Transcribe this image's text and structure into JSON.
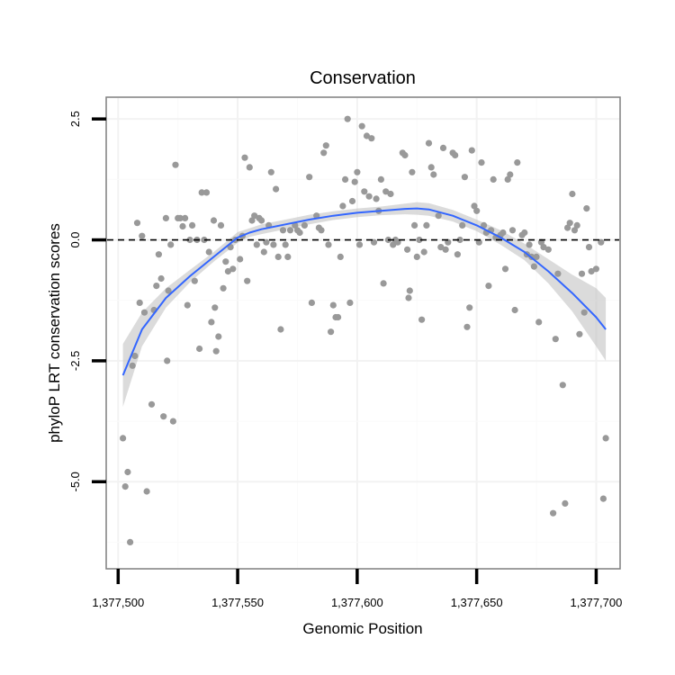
{
  "chart_data": {
    "type": "scatter",
    "title": "Conservation",
    "xlabel": "Genomic Position",
    "ylabel": "phyloP LRT conservation scores",
    "xlim": [
      1377495,
      1377710
    ],
    "ylim": [
      -6.8,
      2.95
    ],
    "x_ticks": [
      1377500,
      1377550,
      1377600,
      1377650,
      1377700
    ],
    "x_tick_labels": [
      "1,377,500",
      "1,377,550",
      "1,377,600",
      "1,377,650",
      "1,377,700"
    ],
    "y_ticks": [
      2.5,
      0,
      -2.5,
      -5
    ],
    "y_tick_labels": [
      "2.5",
      "0.0",
      "-2.5",
      "-5.0"
    ],
    "reference_line": {
      "y": 0,
      "style": "dashed",
      "color": "#000000"
    },
    "point_color": "#999999",
    "smooth_color": "#3366ff",
    "ribbon_color": "#bdbdbd",
    "points": [
      [
        1377502,
        -4.1
      ],
      [
        1377503,
        -5.1
      ],
      [
        1377504,
        -4.8
      ],
      [
        1377505,
        -6.25
      ],
      [
        1377506,
        -2.6
      ],
      [
        1377507,
        -2.4
      ],
      [
        1377508,
        0.35
      ],
      [
        1377509,
        -1.3
      ],
      [
        1377510,
        0.08
      ],
      [
        1377511,
        -1.5
      ],
      [
        1377512,
        -5.2
      ],
      [
        1377514,
        -3.4
      ],
      [
        1377515,
        -1.45
      ],
      [
        1377516,
        -0.95
      ],
      [
        1377517,
        -0.3
      ],
      [
        1377518,
        -0.8
      ],
      [
        1377519,
        -3.65
      ],
      [
        1377520,
        0.45
      ],
      [
        1377520.5,
        -2.5
      ],
      [
        1377521,
        -1.05
      ],
      [
        1377522,
        -0.1
      ],
      [
        1377523,
        -3.75
      ],
      [
        1377524,
        1.55
      ],
      [
        1377525,
        0.45
      ],
      [
        1377526,
        0.45
      ],
      [
        1377527,
        0.28
      ],
      [
        1377528,
        0.45
      ],
      [
        1377529,
        -1.35
      ],
      [
        1377530,
        0.0
      ],
      [
        1377531,
        0.3
      ],
      [
        1377532,
        -0.85
      ],
      [
        1377533,
        0.0
      ],
      [
        1377534,
        -2.25
      ],
      [
        1377535,
        0.98
      ],
      [
        1377536,
        0.0
      ],
      [
        1377537,
        0.98
      ],
      [
        1377538,
        -0.25
      ],
      [
        1377539,
        -1.7
      ],
      [
        1377540,
        0.4
      ],
      [
        1377540.5,
        -1.4
      ],
      [
        1377541,
        -2.3
      ],
      [
        1377542,
        -2.0
      ],
      [
        1377543,
        0.3
      ],
      [
        1377544,
        -1.0
      ],
      [
        1377545,
        -0.45
      ],
      [
        1377546,
        -0.65
      ],
      [
        1377547,
        -0.15
      ],
      [
        1377548,
        -0.6
      ],
      [
        1377549,
        0.0
      ],
      [
        1377551,
        -0.4
      ],
      [
        1377552,
        0.08
      ],
      [
        1377553,
        1.7
      ],
      [
        1377554,
        -0.85
      ],
      [
        1377555,
        1.5
      ],
      [
        1377556,
        0.4
      ],
      [
        1377557,
        0.5
      ],
      [
        1377558,
        -0.1
      ],
      [
        1377559,
        0.45
      ],
      [
        1377560,
        0.4
      ],
      [
        1377561,
        -0.25
      ],
      [
        1377562,
        -0.05
      ],
      [
        1377563,
        0.3
      ],
      [
        1377564,
        1.4
      ],
      [
        1377565,
        -0.1
      ],
      [
        1377566,
        1.05
      ],
      [
        1377567,
        -0.35
      ],
      [
        1377568,
        -1.85
      ],
      [
        1377569,
        0.2
      ],
      [
        1377570,
        -0.1
      ],
      [
        1377571,
        -0.35
      ],
      [
        1377572,
        0.2
      ],
      [
        1377574,
        0.3
      ],
      [
        1377575,
        0.2
      ],
      [
        1377576,
        0.15
      ],
      [
        1377578,
        0.3
      ],
      [
        1377580,
        1.3
      ],
      [
        1377581,
        -1.3
      ],
      [
        1377583,
        0.5
      ],
      [
        1377584,
        0.25
      ],
      [
        1377585,
        0.2
      ],
      [
        1377586,
        1.8
      ],
      [
        1377587,
        1.95
      ],
      [
        1377588,
        -0.1
      ],
      [
        1377589,
        -1.9
      ],
      [
        1377590,
        -1.35
      ],
      [
        1377591,
        -1.6
      ],
      [
        1377592,
        -1.6
      ],
      [
        1377593,
        -0.35
      ],
      [
        1377594,
        0.7
      ],
      [
        1377595,
        1.25
      ],
      [
        1377596,
        2.5
      ],
      [
        1377597,
        -1.3
      ],
      [
        1377598,
        0.8
      ],
      [
        1377599,
        1.2
      ],
      [
        1377600,
        1.4
      ],
      [
        1377601,
        -0.1
      ],
      [
        1377602,
        2.35
      ],
      [
        1377603,
        1.0
      ],
      [
        1377604,
        2.15
      ],
      [
        1377605,
        0.9
      ],
      [
        1377606,
        2.1
      ],
      [
        1377607,
        -0.05
      ],
      [
        1377608,
        0.85
      ],
      [
        1377609,
        0.6
      ],
      [
        1377610,
        1.25
      ],
      [
        1377611,
        -0.9
      ],
      [
        1377612,
        1.0
      ],
      [
        1377613,
        0.0
      ],
      [
        1377614,
        0.95
      ],
      [
        1377615,
        -0.1
      ],
      [
        1377616,
        0.0
      ],
      [
        1377617,
        -0.05
      ],
      [
        1377619,
        1.8
      ],
      [
        1377620,
        1.75
      ],
      [
        1377621,
        -0.2
      ],
      [
        1377621.5,
        -1.2
      ],
      [
        1377622,
        -1.05
      ],
      [
        1377623,
        1.4
      ],
      [
        1377624,
        0.3
      ],
      [
        1377625,
        -0.35
      ],
      [
        1377626,
        0.0
      ],
      [
        1377627,
        -1.65
      ],
      [
        1377628,
        -0.25
      ],
      [
        1377629,
        0.3
      ],
      [
        1377630,
        2.0
      ],
      [
        1377631,
        1.5
      ],
      [
        1377632,
        1.35
      ],
      [
        1377634,
        0.5
      ],
      [
        1377635,
        -0.15
      ],
      [
        1377636,
        1.9
      ],
      [
        1377637,
        -0.2
      ],
      [
        1377638,
        -0.05
      ],
      [
        1377640,
        1.8
      ],
      [
        1377641,
        1.75
      ],
      [
        1377642,
        -0.3
      ],
      [
        1377643,
        0.0
      ],
      [
        1377644,
        0.3
      ],
      [
        1377645,
        1.3
      ],
      [
        1377646,
        -1.8
      ],
      [
        1377647,
        -1.4
      ],
      [
        1377648,
        1.85
      ],
      [
        1377649,
        0.7
      ],
      [
        1377650,
        0.6
      ],
      [
        1377651,
        -0.05
      ],
      [
        1377652,
        1.6
      ],
      [
        1377653,
        0.3
      ],
      [
        1377654,
        0.15
      ],
      [
        1377655,
        -0.95
      ],
      [
        1377656,
        0.2
      ],
      [
        1377657,
        1.25
      ],
      [
        1377658,
        0.05
      ],
      [
        1377659,
        0.05
      ],
      [
        1377660,
        0.1
      ],
      [
        1377661,
        0.15
      ],
      [
        1377662,
        -0.6
      ],
      [
        1377663,
        1.25
      ],
      [
        1377664,
        1.35
      ],
      [
        1377665,
        0.2
      ],
      [
        1377666,
        -1.45
      ],
      [
        1377667,
        1.6
      ],
      [
        1377669,
        0.1
      ],
      [
        1377670,
        0.15
      ],
      [
        1377671,
        -0.3
      ],
      [
        1377672,
        -0.1
      ],
      [
        1377673,
        -0.35
      ],
      [
        1377674,
        -0.55
      ],
      [
        1377675,
        -0.35
      ],
      [
        1377676,
        -1.7
      ],
      [
        1377677,
        -0.05
      ],
      [
        1377678,
        -0.15
      ],
      [
        1377680,
        -0.2
      ],
      [
        1377682,
        -5.65
      ],
      [
        1377683,
        -2.05
      ],
      [
        1377684,
        -0.7
      ],
      [
        1377686,
        -3.0
      ],
      [
        1377687,
        -5.45
      ],
      [
        1377688,
        0.25
      ],
      [
        1377689,
        0.35
      ],
      [
        1377690,
        0.95
      ],
      [
        1377691,
        0.2
      ],
      [
        1377692,
        0.3
      ],
      [
        1377693,
        -1.95
      ],
      [
        1377694,
        -0.7
      ],
      [
        1377695,
        -1.5
      ],
      [
        1377696,
        0.65
      ],
      [
        1377697,
        -0.15
      ],
      [
        1377698,
        -0.65
      ],
      [
        1377700,
        -0.6
      ],
      [
        1377702,
        -0.05
      ],
      [
        1377703,
        -5.35
      ],
      [
        1377704,
        -4.1
      ]
    ],
    "smooth_fit": {
      "x": [
        1377502,
        1377510,
        1377520,
        1377530,
        1377540,
        1377550,
        1377555,
        1377560,
        1377570,
        1377580,
        1377590,
        1377600,
        1377610,
        1377620,
        1377625,
        1377630,
        1377640,
        1377650,
        1377660,
        1377670,
        1377680,
        1377690,
        1377700,
        1377704
      ],
      "y": [
        -2.8,
        -1.85,
        -1.2,
        -0.75,
        -0.35,
        0.05,
        0.15,
        0.22,
        0.32,
        0.42,
        0.5,
        0.56,
        0.6,
        0.64,
        0.65,
        0.63,
        0.5,
        0.3,
        0.05,
        -0.25,
        -0.65,
        -1.1,
        -1.6,
        -1.85
      ],
      "lower": [
        -3.45,
        -2.2,
        -1.4,
        -0.88,
        -0.45,
        -0.06,
        0.06,
        0.12,
        0.22,
        0.32,
        0.41,
        0.47,
        0.51,
        0.53,
        0.52,
        0.5,
        0.38,
        0.18,
        -0.1,
        -0.42,
        -0.9,
        -1.48,
        -2.2,
        -2.5
      ],
      "upper": [
        -2.15,
        -1.5,
        -1.0,
        -0.62,
        -0.25,
        0.16,
        0.24,
        0.32,
        0.42,
        0.52,
        0.59,
        0.65,
        0.69,
        0.75,
        0.78,
        0.76,
        0.62,
        0.42,
        0.2,
        -0.08,
        -0.4,
        -0.72,
        -1.0,
        -1.2
      ]
    }
  }
}
